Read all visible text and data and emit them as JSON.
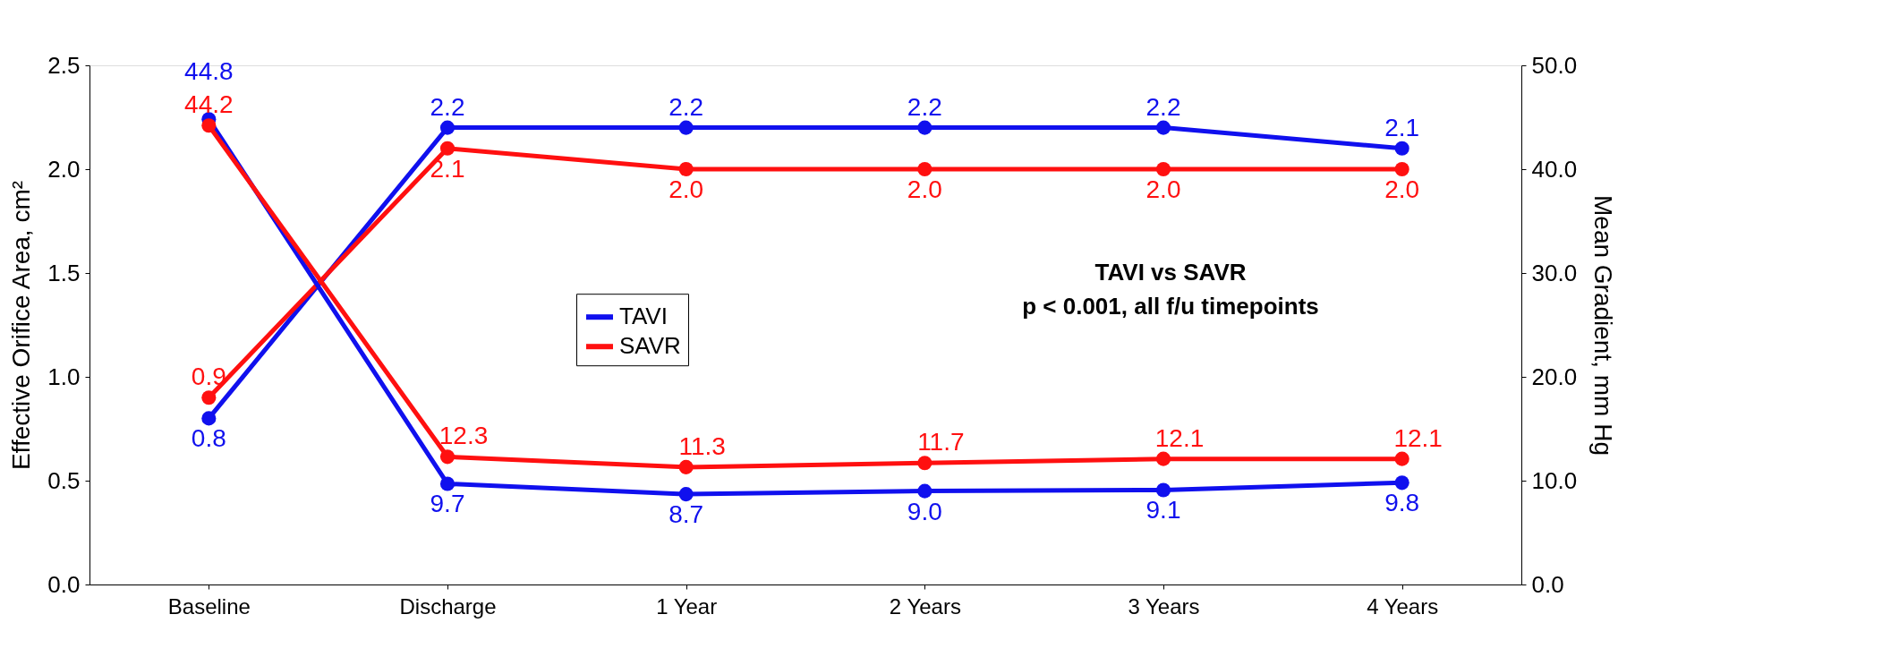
{
  "chart_data": {
    "type": "line",
    "categories": [
      "Baseline",
      "Discharge",
      "1 Year",
      "2 Years",
      "3 Years",
      "4 Years"
    ],
    "series": [
      {
        "name": "TAVI",
        "color": "#1010ee",
        "values": [
          0.8,
          2.2,
          2.2,
          2.2,
          2.2,
          2.1
        ],
        "value_labels": [
          "0.8",
          "2.2",
          "2.2",
          "2.2",
          "2.2",
          "2.1"
        ]
      },
      {
        "name": "SAVR",
        "color": "#ff1010",
        "values": [
          0.9,
          2.1,
          2.0,
          2.0,
          2.0,
          2.0
        ],
        "value_labels": [
          "0.9",
          "2.1",
          "2.0",
          "2.0",
          "2.0",
          "2.0"
        ]
      },
      {
        "color": "#1010ee",
        "axis": "y2",
        "values": [
          44.8,
          9.7,
          8.7,
          9.0,
          9.1,
          9.8
        ],
        "value_labels": [
          "44.8",
          "9.7",
          "8.7",
          "9.0",
          "9.1",
          "9.8"
        ]
      },
      {
        "color": "#ff1010",
        "axis": "y2",
        "values": [
          44.2,
          12.3,
          11.3,
          11.7,
          12.1,
          12.1
        ],
        "value_labels": [
          "44.2",
          "12.3",
          "11.3",
          "11.7",
          "12.1",
          "12.1"
        ]
      }
    ],
    "ylabel": "Effective Orifice Area, cm²",
    "y2label": "Mean Gradient, mm Hg",
    "ylim": [
      0,
      2.5
    ],
    "yticks": [
      {
        "value": 0,
        "label": "0.0"
      },
      {
        "value": 0.5,
        "label": "0.5"
      },
      {
        "value": 1,
        "label": "1.0"
      },
      {
        "value": 1.5,
        "label": "1.5"
      },
      {
        "value": 2,
        "label": "2.0"
      },
      {
        "value": 2.5,
        "label": "2.5"
      }
    ],
    "y2lim": [
      0,
      50
    ],
    "y2ticks": [
      {
        "value": 0,
        "label": "0.0"
      },
      {
        "value": 10,
        "label": "10.0"
      },
      {
        "value": 20,
        "label": "20.0"
      },
      {
        "value": 30,
        "label": "30.0"
      },
      {
        "value": 40,
        "label": "40.0"
      },
      {
        "value": 50,
        "label": "50.0"
      }
    ],
    "annotations": [
      "TAVI vs SAVR",
      "p < 0.001, all f/u timepoints"
    ],
    "marker": "circle",
    "line_style": "solid",
    "grid": false,
    "legend": "center"
  }
}
